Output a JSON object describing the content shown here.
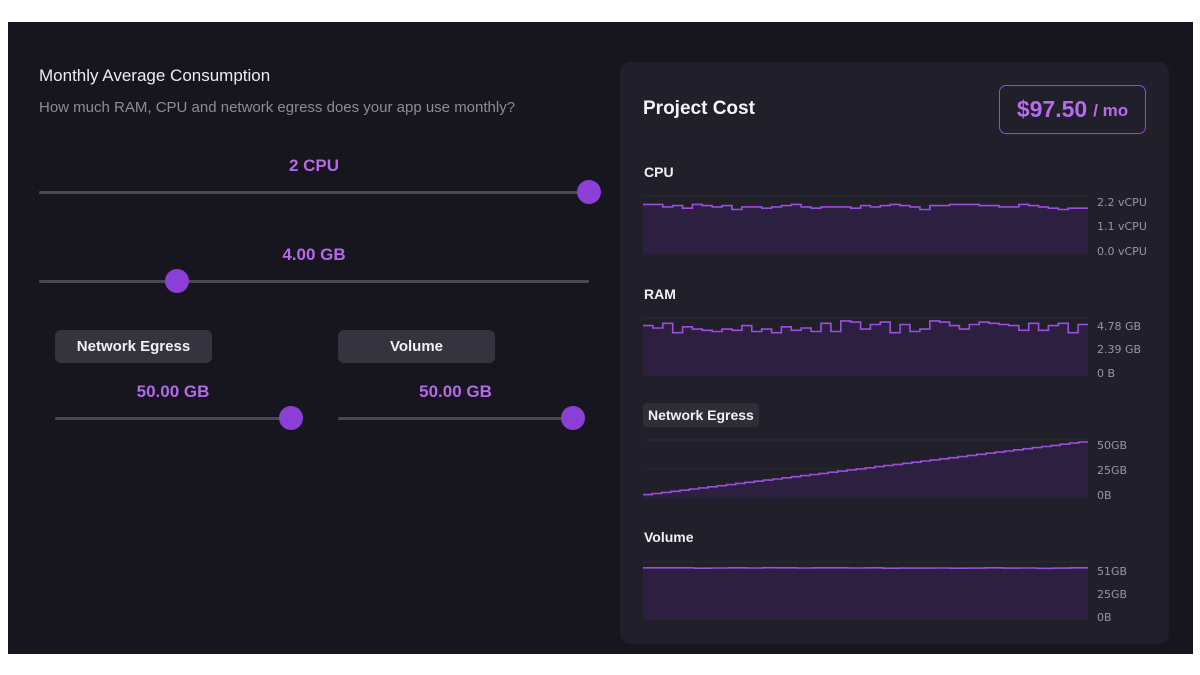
{
  "consumption": {
    "title": "Monthly Average Consumption",
    "subtitle": "How much RAM, CPU and network egress does your app use monthly?",
    "cpu": {
      "value_label": "2 CPU",
      "fraction": 1.0
    },
    "ram": {
      "value_label": "4.00 GB",
      "fraction": 0.25
    },
    "network_egress": {
      "label": "Network Egress",
      "value_label": "50.00 GB",
      "fraction": 1.0
    },
    "volume": {
      "label": "Volume",
      "value_label": "50.00 GB",
      "fraction": 1.0
    }
  },
  "project_cost": {
    "title": "Project Cost",
    "price": "$97.50",
    "period": "/ mo"
  },
  "colors": {
    "accent": "#8c3fd6",
    "accent_text": "#b369e8",
    "line": "#9a4fe0",
    "fill": "#2d1f3f"
  },
  "chart_data": [
    {
      "type": "area",
      "title": "CPU",
      "y_ticks": [
        "2.2 vCPU",
        "1.1 vCPU",
        "0.0 vCPU"
      ],
      "ylim": [
        0,
        2.2
      ],
      "values": [
        1.95,
        1.95,
        1.85,
        1.9,
        1.8,
        1.95,
        1.9,
        1.85,
        1.9,
        1.75,
        1.85,
        1.85,
        1.8,
        1.85,
        1.9,
        1.95,
        1.85,
        1.8,
        1.85,
        1.85,
        1.85,
        1.8,
        1.9,
        1.85,
        1.9,
        1.95,
        1.9,
        1.85,
        1.75,
        1.9,
        1.9,
        1.95,
        1.95,
        1.95,
        1.9,
        1.9,
        1.85,
        1.85,
        1.95,
        1.9,
        1.85,
        1.8,
        1.75,
        1.8,
        1.8
      ]
    },
    {
      "type": "area",
      "title": "RAM",
      "y_ticks": [
        "4.78 GB",
        "2.39 GB",
        "0 B"
      ],
      "ylim": [
        0,
        4.78
      ],
      "values": [
        4.3,
        4.1,
        4.5,
        3.7,
        4.2,
        4.0,
        3.9,
        3.8,
        4.0,
        3.9,
        4.3,
        3.8,
        4.0,
        3.7,
        4.2,
        3.9,
        4.1,
        3.8,
        4.5,
        3.8,
        4.7,
        4.6,
        4.0,
        4.4,
        4.6,
        3.7,
        4.4,
        3.8,
        4.0,
        4.7,
        4.6,
        4.3,
        4.0,
        4.4,
        4.6,
        4.5,
        4.4,
        4.3,
        3.9,
        4.5,
        3.9,
        4.3,
        4.5,
        3.7,
        4.4
      ]
    },
    {
      "type": "area",
      "title": "Network Egress",
      "y_ticks": [
        "50GB",
        "25GB",
        "0B"
      ],
      "ylim": [
        0,
        50
      ],
      "values": [
        3,
        4,
        5,
        6,
        7,
        8,
        9,
        10,
        11,
        12,
        13,
        14,
        15,
        16,
        17,
        18,
        19,
        20,
        21,
        22,
        23,
        24,
        25,
        26,
        27,
        28,
        29,
        30,
        31,
        32,
        33,
        34,
        35,
        36,
        37,
        38,
        39,
        40,
        41,
        42,
        43,
        44,
        45,
        46,
        47,
        48,
        49,
        50
      ]
    },
    {
      "type": "area",
      "title": "Volume",
      "y_ticks": [
        "51GB",
        "25GB",
        "0B"
      ],
      "ylim": [
        0,
        51
      ],
      "values": [
        47.5,
        47.5,
        47.5,
        47.2,
        47.4,
        47.5,
        47.4,
        47.6,
        47.5,
        47.4,
        47.5,
        47.5,
        47.4,
        47.5,
        47.2,
        47.3,
        47.3,
        47.4,
        47.2,
        47.3,
        47.5,
        47.3,
        47.4,
        47.1,
        47.3,
        47.5
      ]
    }
  ]
}
